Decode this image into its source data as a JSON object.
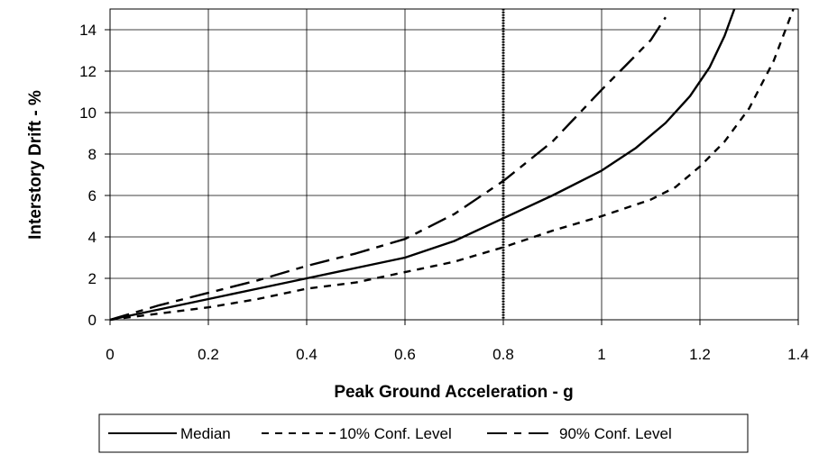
{
  "chart_data": {
    "type": "line",
    "title": "",
    "xlabel": "Peak Ground Acceleration - g",
    "ylabel": "Interstory Drift - %",
    "xlim": [
      0,
      1.4
    ],
    "ylim": [
      0,
      15
    ],
    "xticks": [
      0,
      0.2,
      0.4,
      0.6,
      0.8,
      1,
      1.2,
      1.4
    ],
    "xtick_labels": [
      "0",
      "0.2",
      "0.4",
      "0.6",
      "0.8",
      "1",
      "1.2",
      "1.4"
    ],
    "yticks": [
      0,
      2,
      4,
      6,
      8,
      10,
      12,
      14
    ],
    "ytick_labels": [
      "0",
      "2",
      "4",
      "6",
      "8",
      "10",
      "12",
      "14"
    ],
    "grid": true,
    "legend_position": "bottom",
    "vertical_marker": {
      "x": 0.8,
      "style": "dotted"
    },
    "series": [
      {
        "name": "Median",
        "dash": "solid",
        "color": "#000000",
        "x": [
          0,
          0.1,
          0.2,
          0.3,
          0.4,
          0.5,
          0.6,
          0.7,
          0.8,
          0.9,
          1.0,
          1.07,
          1.13,
          1.18,
          1.22,
          1.25,
          1.27
        ],
        "y": [
          0,
          0.5,
          1.0,
          1.5,
          2.0,
          2.5,
          3.0,
          3.8,
          4.9,
          6.0,
          7.2,
          8.3,
          9.5,
          10.8,
          12.2,
          13.7,
          15.0
        ]
      },
      {
        "name": "10% Conf. Level",
        "dash": "dashed",
        "color": "#000000",
        "x": [
          0,
          0.1,
          0.2,
          0.3,
          0.4,
          0.5,
          0.6,
          0.7,
          0.8,
          0.9,
          1.0,
          1.1,
          1.15,
          1.2,
          1.25,
          1.3,
          1.35,
          1.39
        ],
        "y": [
          0,
          0.3,
          0.6,
          1.0,
          1.5,
          1.8,
          2.3,
          2.8,
          3.5,
          4.3,
          5.0,
          5.8,
          6.4,
          7.4,
          8.6,
          10.2,
          12.5,
          15.0
        ]
      },
      {
        "name": "90% Conf. Level",
        "dash": "dash-dot",
        "color": "#000000",
        "x": [
          0,
          0.1,
          0.2,
          0.3,
          0.4,
          0.5,
          0.6,
          0.7,
          0.8,
          0.9,
          1.0,
          1.05,
          1.1,
          1.13
        ],
        "y": [
          0,
          0.7,
          1.3,
          1.9,
          2.6,
          3.2,
          3.9,
          5.1,
          6.7,
          8.6,
          11.1,
          12.3,
          13.5,
          14.6
        ]
      }
    ]
  }
}
